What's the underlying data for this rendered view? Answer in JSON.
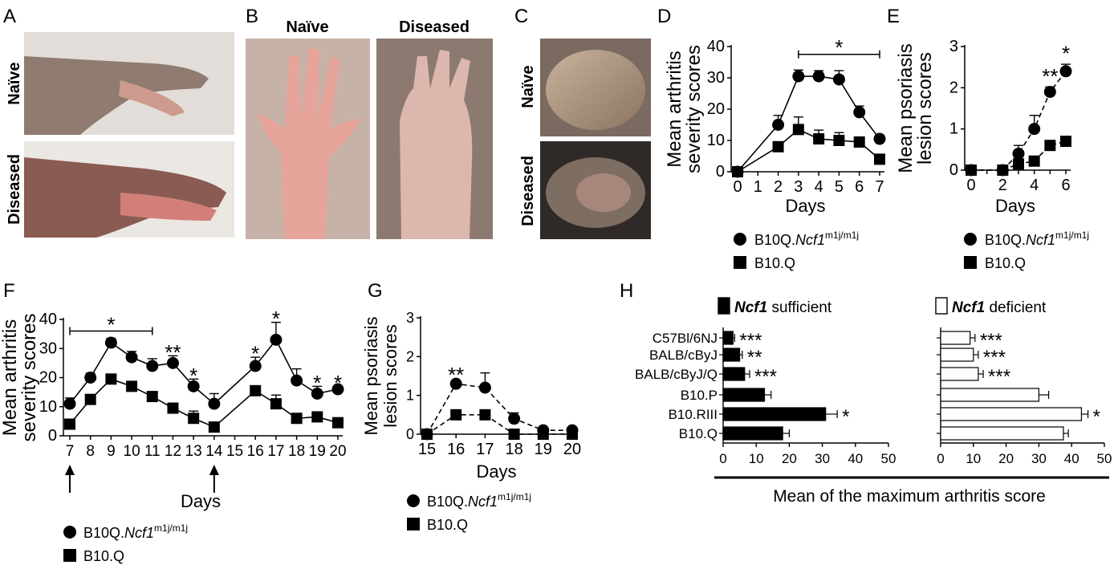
{
  "panels": {
    "A": {
      "letter": "A",
      "photo_top": "Naïve",
      "photo_bottom": "Diseased"
    },
    "B": {
      "letter": "B",
      "photo_left": "Naïve",
      "photo_right": "Diseased"
    },
    "C": {
      "letter": "C",
      "photo_top": "Naïve",
      "photo_bottom": "Diseased"
    },
    "D": {
      "letter": "D"
    },
    "E": {
      "letter": "E"
    },
    "F": {
      "letter": "F"
    },
    "G": {
      "letter": "G"
    },
    "H": {
      "letter": "H"
    }
  },
  "legend": {
    "series1_prefix": "B10Q.",
    "series1_gene": "Ncf1",
    "series1_sup": "m1j/m1j",
    "series2": "B10.Q"
  },
  "colors": {
    "line": "#000000",
    "photo_fill": "#c9a79a",
    "bar_open": "#ffffff",
    "bar_filled": "#000000"
  },
  "chart_data": [
    {
      "id": "D",
      "type": "line",
      "xlabel": "Days",
      "ylabel": [
        "Mean arthritis",
        "severity scores"
      ],
      "xlim": [
        0,
        7
      ],
      "ylim": [
        0,
        40
      ],
      "xticks": [
        "0",
        "1",
        "2",
        "3",
        "4",
        "5",
        "6",
        "7"
      ],
      "yticks": [
        "0",
        "10",
        "20",
        "30",
        "40"
      ],
      "series": [
        {
          "name": "B10Q.Ncf1 m1j/m1j",
          "marker": "circle",
          "style": "solid",
          "x": [
            0,
            2,
            3,
            4,
            5,
            6,
            7
          ],
          "y": [
            0,
            15,
            30.5,
            30.5,
            29.5,
            19,
            10.5
          ],
          "err": [
            0,
            3,
            2,
            1.8,
            2.8,
            2,
            1.2
          ]
        },
        {
          "name": "B10.Q",
          "marker": "square",
          "style": "solid",
          "x": [
            0,
            2,
            3,
            4,
            5,
            6,
            7
          ],
          "y": [
            0,
            8,
            13.5,
            10.5,
            10,
            9.5,
            4
          ],
          "err": [
            0,
            1.5,
            4,
            2.8,
            2.5,
            1.2,
            1
          ]
        }
      ],
      "annotations": [
        {
          "text": "*",
          "x_from": 3,
          "x_to": 7,
          "bracket_y": 37.5,
          "star_y": 40
        }
      ]
    },
    {
      "id": "E",
      "type": "line",
      "xlabel": "Days",
      "ylabel": [
        "Mean psoriasis",
        "lesion scores"
      ],
      "xlim": [
        0,
        6
      ],
      "ylim": [
        0,
        3
      ],
      "xticks": [
        "0",
        "",
        "2",
        "",
        "4",
        "",
        "6"
      ],
      "yticks": [
        "0",
        "1",
        "2",
        "3"
      ],
      "series": [
        {
          "name": "B10Q.Ncf1 m1j/m1j",
          "marker": "circle",
          "style": "dashed",
          "x": [
            0,
            2,
            3,
            4,
            5,
            6
          ],
          "y": [
            0,
            0,
            0.4,
            1,
            1.9,
            2.4
          ],
          "err": [
            0,
            0,
            0.2,
            0.33,
            0.12,
            0.17
          ]
        },
        {
          "name": "B10.Q",
          "marker": "square",
          "style": "dashed",
          "x": [
            0,
            2,
            3,
            4,
            5,
            6
          ],
          "y": [
            0,
            0,
            0.15,
            0.22,
            0.6,
            0.7
          ],
          "err": [
            0,
            0,
            0.08,
            0.08,
            0.08,
            0.07
          ]
        }
      ],
      "point_labels": [
        {
          "text": "**",
          "x": 5,
          "y": 2.3
        },
        {
          "text": "*",
          "x": 6,
          "y": 2.85
        }
      ]
    },
    {
      "id": "F",
      "type": "line",
      "xlabel": "Days",
      "ylabel": [
        "Mean arthritis",
        "severity scores"
      ],
      "xlim": [
        7,
        20
      ],
      "ylim": [
        0,
        40
      ],
      "xticks": [
        "7",
        "8",
        "9",
        "10",
        "11",
        "12",
        "13",
        "14",
        "15",
        "16",
        "17",
        "18",
        "19",
        "20"
      ],
      "yticks": [
        "0",
        "10",
        "20",
        "30",
        "40"
      ],
      "series": [
        {
          "name": "B10Q.Ncf1 m1j/m1j",
          "marker": "circle",
          "style": "solid",
          "x": [
            7,
            8,
            9,
            10,
            11,
            12,
            13,
            14,
            16,
            17,
            18,
            19,
            20
          ],
          "y": [
            11,
            20,
            32,
            27,
            24,
            25,
            17,
            11,
            24,
            33,
            19,
            14.5,
            16
          ],
          "err": [
            2,
            1.5,
            1.5,
            2,
            2.5,
            2.5,
            2.5,
            3.5,
            3,
            6,
            4,
            2.5,
            1
          ]
        },
        {
          "name": "B10.Q",
          "marker": "square",
          "style": "solid",
          "x": [
            7,
            8,
            9,
            10,
            11,
            12,
            13,
            14,
            16,
            17,
            18,
            19,
            20
          ],
          "y": [
            4,
            12.5,
            19.5,
            17,
            13.5,
            9.5,
            6,
            3,
            15.5,
            11,
            6,
            6.5,
            4.5
          ],
          "err": [
            1,
            1.5,
            1.5,
            1.5,
            1.5,
            1.5,
            2.5,
            1.5,
            1.5,
            3,
            1.5,
            1.5,
            1
          ]
        }
      ],
      "point_labels": [
        {
          "text": "**",
          "x": 12,
          "y": 29
        },
        {
          "text": "*",
          "x": 13,
          "y": 21
        },
        {
          "text": "*",
          "x": 16,
          "y": 28.5
        },
        {
          "text": "*",
          "x": 17,
          "y": 40.5
        },
        {
          "text": "*",
          "x": 19,
          "y": 18.5
        },
        {
          "text": "*",
          "x": 20,
          "y": 18.5
        }
      ],
      "annotations": [
        {
          "text": "*",
          "x_from": 7,
          "x_to": 11,
          "bracket_y": 36,
          "star_y": 38.5
        }
      ],
      "arrows_at_days": [
        7,
        14
      ]
    },
    {
      "id": "G",
      "type": "line",
      "xlabel": "Days",
      "ylabel": [
        "Mean psoriasis",
        "lesion scores"
      ],
      "xlim": [
        15,
        20
      ],
      "ylim": [
        0,
        3
      ],
      "xticks": [
        "15",
        "16",
        "17",
        "18",
        "19",
        "20"
      ],
      "yticks": [
        "0",
        "1",
        "2",
        "3"
      ],
      "series": [
        {
          "name": "B10Q.Ncf1 m1j/m1j",
          "marker": "circle",
          "style": "dashed",
          "x": [
            15,
            16,
            17,
            18,
            19,
            20
          ],
          "y": [
            0,
            1.3,
            1.2,
            0.4,
            0.1,
            0.1
          ],
          "err": [
            0,
            0,
            0.38,
            0.15,
            0.05,
            0.05
          ]
        },
        {
          "name": "B10.Q",
          "marker": "square",
          "style": "dashed",
          "x": [
            15,
            16,
            17,
            18,
            19,
            20
          ],
          "y": [
            0,
            0.5,
            0.5,
            0,
            0,
            0
          ],
          "err": [
            0,
            0,
            0,
            0,
            0,
            0
          ]
        }
      ],
      "point_labels": [
        {
          "text": "**",
          "x": 16,
          "y": 1.55
        }
      ]
    },
    {
      "id": "H",
      "type": "bar",
      "xlabel": "Mean of the maximum arthritis score",
      "categories": [
        "C57Bl/6NJ",
        "BALB/cByJ",
        "BALB/cByJ/Q",
        "B10.P",
        "B10.RIII",
        "B10.Q"
      ],
      "xlim": [
        0,
        50
      ],
      "xticks": [
        "0",
        "10",
        "20",
        "30",
        "40",
        "50"
      ],
      "series": [
        {
          "name": "sufficient",
          "legend_gene": "Ncf1",
          "legend_suffix": " sufficient",
          "fill": "black",
          "values": [
            3,
            5,
            6.5,
            12.5,
            31,
            18
          ],
          "err": [
            0.5,
            0.8,
            1.5,
            2,
            3.5,
            2
          ],
          "stars": [
            "***",
            "**",
            "***",
            "",
            "*",
            ""
          ]
        },
        {
          "name": "deficient",
          "legend_gene": "Ncf1",
          "legend_suffix": " deficient",
          "fill": "white",
          "values": [
            9,
            10,
            11.5,
            30,
            43,
            37.5
          ],
          "err": [
            1.5,
            1.5,
            1.5,
            3,
            2,
            1.5
          ],
          "stars": [
            "***",
            "***",
            "***",
            "",
            "*",
            ""
          ]
        }
      ]
    }
  ]
}
